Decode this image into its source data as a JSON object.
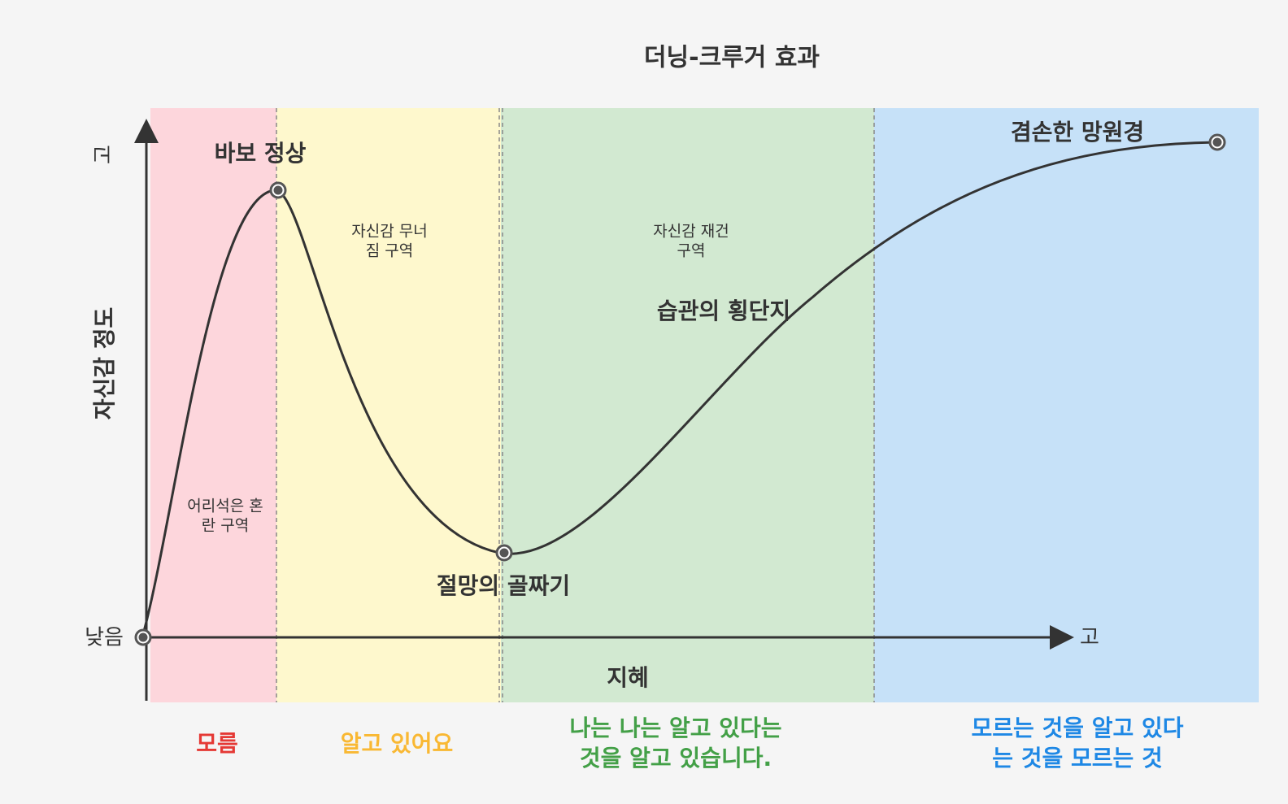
{
  "title": "더닝-크루거 효과",
  "axes": {
    "y_label": "자신감 정도",
    "y_high": "고",
    "y_low": "낮음",
    "x_high": "고",
    "x_label": "지혜"
  },
  "zones": [
    {
      "lines": [
        "어리석은 혼",
        "란 구역"
      ]
    },
    {
      "lines": [
        "자신감 무너",
        "짐 구역"
      ]
    },
    {
      "lines": [
        "자신감 재건",
        "구역"
      ]
    }
  ],
  "points": [
    "바보 정상",
    "절망의 골짜기",
    "습관의 횡단지",
    "겸손한 망원경"
  ],
  "stages": [
    {
      "lines": [
        "모름"
      ]
    },
    {
      "lines": [
        "알고 있어요"
      ]
    },
    {
      "lines": [
        "나는 나는 알고 있다는",
        "것을 알고 있습니다."
      ]
    },
    {
      "lines": [
        "모르는 것을 알고 있다",
        "는 것을 모르는 것"
      ]
    }
  ]
}
